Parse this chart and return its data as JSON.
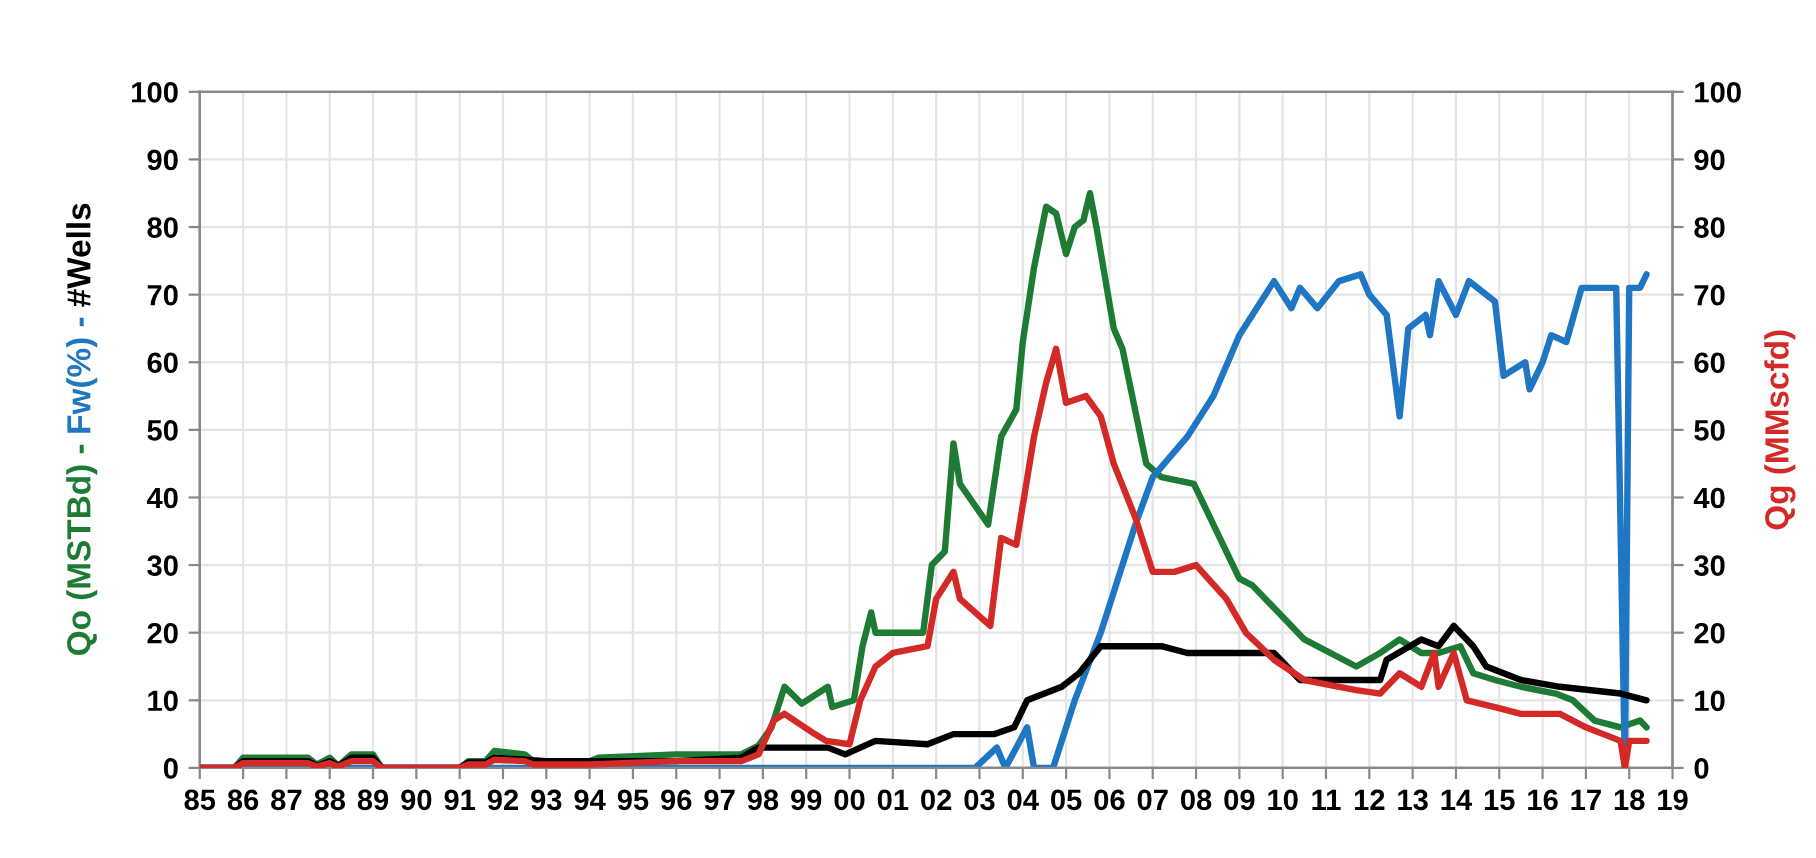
{
  "chart_data": {
    "type": "line",
    "ylabel": "Qo (MSTBd) - Fw(%) - #Wells",
    "y2label": "Qg (MMscfd)",
    "xlim": [
      1985,
      2019
    ],
    "xticks": [
      {
        "value": 1985,
        "label": "85"
      },
      {
        "value": 1986,
        "label": "86"
      },
      {
        "value": 1987,
        "label": "87"
      },
      {
        "value": 1988,
        "label": "88"
      },
      {
        "value": 1989,
        "label": "89"
      },
      {
        "value": 1990,
        "label": "90"
      },
      {
        "value": 1991,
        "label": "91"
      },
      {
        "value": 1992,
        "label": "92"
      },
      {
        "value": 1993,
        "label": "93"
      },
      {
        "value": 1994,
        "label": "94"
      },
      {
        "value": 1995,
        "label": "95"
      },
      {
        "value": 1996,
        "label": "96"
      },
      {
        "value": 1997,
        "label": "97"
      },
      {
        "value": 1998,
        "label": "98"
      },
      {
        "value": 1999,
        "label": "99"
      },
      {
        "value": 2000,
        "label": "00"
      },
      {
        "value": 2001,
        "label": "01"
      },
      {
        "value": 2002,
        "label": "02"
      },
      {
        "value": 2003,
        "label": "03"
      },
      {
        "value": 2004,
        "label": "04"
      },
      {
        "value": 2005,
        "label": "05"
      },
      {
        "value": 2006,
        "label": "06"
      },
      {
        "value": 2007,
        "label": "07"
      },
      {
        "value": 2008,
        "label": "08"
      },
      {
        "value": 2009,
        "label": "09"
      },
      {
        "value": 2010,
        "label": "10"
      },
      {
        "value": 2011,
        "label": "11"
      },
      {
        "value": 2012,
        "label": "12"
      },
      {
        "value": 2013,
        "label": "13"
      },
      {
        "value": 2014,
        "label": "14"
      },
      {
        "value": 2015,
        "label": "15"
      },
      {
        "value": 2016,
        "label": "16"
      },
      {
        "value": 2017,
        "label": "17"
      },
      {
        "value": 2018,
        "label": "18"
      },
      {
        "value": 2019,
        "label": "19"
      }
    ],
    "ylim": [
      0,
      100
    ],
    "yticks": [
      0,
      10,
      20,
      30,
      40,
      50,
      60,
      70,
      80,
      90,
      100
    ],
    "y2lim": [
      0,
      100
    ],
    "y2ticks": [
      0,
      10,
      20,
      30,
      40,
      50,
      60,
      70,
      80,
      90,
      100
    ],
    "grid": true,
    "marker": "none",
    "line_style": "solid",
    "series": [
      {
        "color": "#1e7b34",
        "x": [
          1985,
          1985.8,
          1986,
          1987.5,
          1987.7,
          1988,
          1988.2,
          1988.5,
          1989,
          1989.2,
          1991,
          1991.2,
          1991.6,
          1991.8,
          1992.5,
          1992.7,
          1994,
          1994.2,
          1996,
          1997.5,
          1997.9,
          1998.2,
          1998.5,
          1998.9,
          1999.5,
          1999.6,
          2000.1,
          2000.3,
          2000.5,
          2000.6,
          2001.0,
          2001.7,
          2001.9,
          2002.2,
          2002.4,
          2002.55,
          2003.2,
          2003.5,
          2003.85,
          2004.0,
          2004.26,
          2004.54,
          2004.77,
          2005.0,
          2005.2,
          2005.4,
          2005.55,
          2005.7,
          2006.1,
          2006.3,
          2006.85,
          2007.2,
          2007.95,
          2008.55,
          2009.0,
          2009.3,
          2010.5,
          2011.7,
          2012.25,
          2012.7,
          2013.2,
          2013.6,
          2014.1,
          2014.4,
          2014.9,
          2015.5,
          2016.3,
          2016.7,
          2017.2,
          2017.8,
          2018.25,
          2018.4
        ],
        "values": [
          0,
          0,
          1.5,
          1.5,
          0.5,
          1.5,
          0.3,
          2,
          2,
          0,
          0,
          1,
          1,
          2.5,
          2,
          1,
          1,
          1.5,
          2,
          2,
          3.3,
          6,
          12,
          9.5,
          12,
          9,
          10,
          18,
          23,
          20,
          20,
          20,
          30,
          32,
          48,
          42,
          36,
          49,
          53,
          63,
          74,
          83,
          82,
          76,
          80,
          81,
          85,
          80,
          65,
          62,
          45,
          43,
          42,
          34,
          28,
          27,
          19,
          15,
          17,
          19,
          17,
          17,
          18,
          14,
          13,
          12,
          11,
          10,
          7,
          6,
          7,
          6
        ]
      },
      {
        "color": "#1f77c4",
        "x": [
          1985,
          2002.9,
          2003.4,
          2003.6,
          2004.1,
          2004.26,
          2004.7,
          2005.2,
          2005.8,
          2006.6,
          2007.0,
          2007.8,
          2008.4,
          2009.0,
          2009.8,
          2010.2,
          2010.4,
          2010.8,
          2011.3,
          2011.8,
          2012.0,
          2012.4,
          2012.7,
          2012.9,
          2013.3,
          2013.4,
          2013.6,
          2014.0,
          2014.3,
          2014.9,
          2015.1,
          2015.6,
          2015.7,
          2016.0,
          2016.2,
          2016.55,
          2016.9,
          2017.7,
          2017.9,
          2018.0,
          2018.25,
          2018.4
        ],
        "values": [
          0,
          0,
          3,
          0,
          6,
          0,
          0,
          10,
          20,
          36,
          43,
          49,
          55,
          64,
          72,
          68,
          71,
          68,
          72,
          73,
          70,
          67,
          52,
          65,
          67,
          64,
          72,
          67,
          72,
          69,
          58,
          60,
          56,
          60,
          64,
          63,
          71,
          71,
          0,
          71,
          71,
          73
        ]
      },
      {
        "color": "#000000",
        "x": [
          1985,
          1985.8,
          1986,
          1987.5,
          1987.7,
          1988,
          1988.2,
          1988.5,
          1989,
          1989.2,
          1991,
          1991.2,
          1991.6,
          1991.8,
          1992.5,
          1993,
          1996,
          1997.5,
          1997.9,
          1999.5,
          1999.9,
          2000.6,
          2001.8,
          2002.4,
          2003.35,
          2003.8,
          2004.1,
          2004.9,
          2005.3,
          2005.8,
          2006.4,
          2007.2,
          2007.8,
          2008.4,
          2009.8,
          2010.4,
          2012.25,
          2012.4,
          2013.2,
          2013.6,
          2013.95,
          2014.4,
          2014.7,
          2015.5,
          2016.4,
          2017.8,
          2018.4
        ],
        "values": [
          0,
          0,
          1,
          1,
          0.3,
          1,
          0.3,
          1.5,
          1.5,
          0,
          0,
          0.8,
          0.8,
          1.5,
          1.2,
          1,
          1,
          1.5,
          3,
          3,
          2,
          4,
          3.5,
          5,
          5,
          6,
          10,
          12,
          14,
          18,
          18,
          18,
          17,
          17,
          17,
          13,
          13,
          16,
          19,
          18,
          21,
          18,
          15,
          13,
          12,
          11,
          10
        ]
      },
      {
        "color": "#d42a27",
        "axis": "y2",
        "x": [
          1985,
          1985.8,
          1986,
          1987.5,
          1987.7,
          1988,
          1988.2,
          1988.5,
          1989,
          1989.2,
          1991,
          1991.2,
          1991.6,
          1991.8,
          1992.5,
          1992.7,
          1994,
          1996,
          1997.5,
          1997.9,
          1998.25,
          1998.5,
          1999.2,
          1999.46,
          2000.0,
          2000.25,
          2000.6,
          2001.0,
          2001.8,
          2002.0,
          2002.4,
          2002.55,
          2003.25,
          2003.5,
          2003.85,
          2004.26,
          2004.54,
          2004.77,
          2005.0,
          2005.46,
          2005.8,
          2006.1,
          2006.6,
          2007.0,
          2007.5,
          2008.0,
          2008.7,
          2009.15,
          2009.8,
          2010.5,
          2011.7,
          2012.25,
          2012.7,
          2013.2,
          2013.5,
          2013.6,
          2013.95,
          2014.25,
          2014.9,
          2015.5,
          2016.4,
          2017.0,
          2017.4,
          2017.8,
          2017.9,
          2018.0,
          2018.4
        ],
        "values": [
          0,
          0,
          0.7,
          0.7,
          0.2,
          0.7,
          0.2,
          1,
          1,
          0,
          0,
          0.5,
          0.5,
          1.2,
          1,
          0.5,
          0.5,
          1,
          1,
          2,
          7,
          8,
          5,
          4,
          3.5,
          10,
          15,
          17,
          18,
          25,
          29,
          25,
          21,
          34,
          33,
          49,
          57,
          62,
          54,
          55,
          52,
          45,
          37,
          29,
          29,
          30,
          25,
          20,
          16,
          13,
          11.5,
          11,
          14,
          12,
          17,
          12,
          17,
          10,
          9,
          8,
          8,
          6,
          5,
          4,
          0,
          4,
          4
        ]
      }
    ]
  }
}
